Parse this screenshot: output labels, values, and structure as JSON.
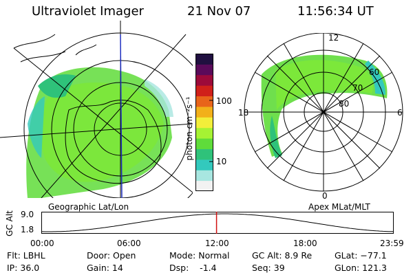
{
  "header": {
    "title": "Ultraviolet Imager",
    "date": "21 Nov 07",
    "time": "11:56:34 UT"
  },
  "colorbar": {
    "unit_label": "photon cm⁻²s⁻¹",
    "ticks": [
      "100",
      "10"
    ],
    "scale": "log",
    "colors": [
      "#f2f2f2",
      "#a8e6e0",
      "#33c9bd",
      "#2fc27a",
      "#5fdc3a",
      "#a6f233",
      "#f2ee3a",
      "#f2b01a",
      "#e8641a",
      "#d0201a",
      "#9c0a3a",
      "#5a0a5a",
      "#201040"
    ]
  },
  "left_panel": {
    "caption": "Geographic Lat/Lon"
  },
  "right_panel": {
    "caption": "Apex MLat/MLT",
    "mlt_labels": {
      "top": "12",
      "left": "18",
      "right": "6",
      "bottom": "0"
    },
    "lat_labels": [
      "60",
      "70",
      "80"
    ]
  },
  "altitude_plot": {
    "ylabel": "GC Alt",
    "yticks": [
      "9.0",
      "1.8"
    ],
    "xticks": [
      "00:00",
      "06:00",
      "12:00",
      "18:00",
      "23:59"
    ],
    "marker_time": "11:56",
    "marker_color": "#d01010"
  },
  "status": {
    "filter": "Flt: LBHL",
    "ip": "IP: 36.0",
    "door": "Door: Open",
    "gain": "Gain: 14",
    "mode": "Mode: Normal",
    "dsp": "Dsp:    -1.4",
    "gc_alt": "GC Alt: 8.9 Re",
    "seq": "Seq: 39",
    "glat": "GLat: −77.1",
    "glon": "GLon: 121.3"
  }
}
